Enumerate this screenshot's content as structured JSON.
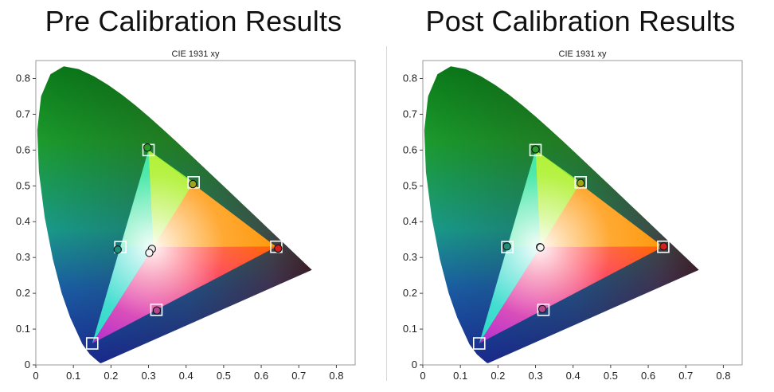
{
  "chart_data": [
    {
      "type": "scatter",
      "title": "Pre Calibration Results",
      "subtitle": "CIE 1931 xy",
      "xlim": [
        0,
        0.85
      ],
      "ylim": [
        0,
        0.85
      ],
      "xticks": [
        "0",
        "0.1",
        "0.2",
        "0.3",
        "0.4",
        "0.5",
        "0.6",
        "0.7",
        "0.8"
      ],
      "yticks": [
        "0",
        "0.1",
        "0.2",
        "0.3",
        "0.4",
        "0.5",
        "0.6",
        "0.7",
        "0.8"
      ],
      "series": [
        {
          "marker": "square",
          "points": [
            [
              0.3,
              0.6
            ],
            [
              0.42,
              0.51
            ],
            [
              0.64,
              0.33
            ],
            [
              0.225,
              0.329
            ],
            [
              0.15,
              0.06
            ],
            [
              0.321,
              0.154
            ]
          ]
        },
        {
          "marker": "circle",
          "points": [
            [
              0.297,
              0.607
            ],
            [
              0.418,
              0.505
            ],
            [
              0.645,
              0.325
            ],
            [
              0.218,
              0.322
            ],
            [
              0.322,
              0.152
            ],
            [
              0.309,
              0.324
            ],
            [
              0.302,
              0.313
            ]
          ],
          "fills": [
            "#2c9b2c",
            "#9aa61b",
            "#d22020",
            "#1f8f7a",
            "#b4488c",
            "#eaeaea",
            "#f4f4f4"
          ]
        }
      ]
    },
    {
      "type": "scatter",
      "title": "Post Calibration Results",
      "subtitle": "CIE 1931 xy",
      "xlim": [
        0,
        0.85
      ],
      "ylim": [
        0,
        0.85
      ],
      "xticks": [
        "0",
        "0.1",
        "0.2",
        "0.3",
        "0.4",
        "0.5",
        "0.6",
        "0.7",
        "0.8"
      ],
      "yticks": [
        "0",
        "0.1",
        "0.2",
        "0.3",
        "0.4",
        "0.5",
        "0.6",
        "0.7",
        "0.8"
      ],
      "series": [
        {
          "marker": "square",
          "points": [
            [
              0.3,
              0.6
            ],
            [
              0.42,
              0.51
            ],
            [
              0.64,
              0.33
            ],
            [
              0.225,
              0.329
            ],
            [
              0.15,
              0.06
            ],
            [
              0.321,
              0.154
            ]
          ]
        },
        {
          "marker": "circle",
          "points": [
            [
              0.3,
              0.602
            ],
            [
              0.42,
              0.508
            ],
            [
              0.641,
              0.331
            ],
            [
              0.224,
              0.331
            ],
            [
              0.318,
              0.156
            ],
            [
              0.312,
              0.329
            ],
            [
              0.313,
              0.328
            ]
          ],
          "fills": [
            "#2c9b2c",
            "#9aa61b",
            "#d22020",
            "#1f8f7a",
            "#b4488c",
            "#eaeaea",
            "#f4f4f4"
          ]
        }
      ]
    }
  ]
}
